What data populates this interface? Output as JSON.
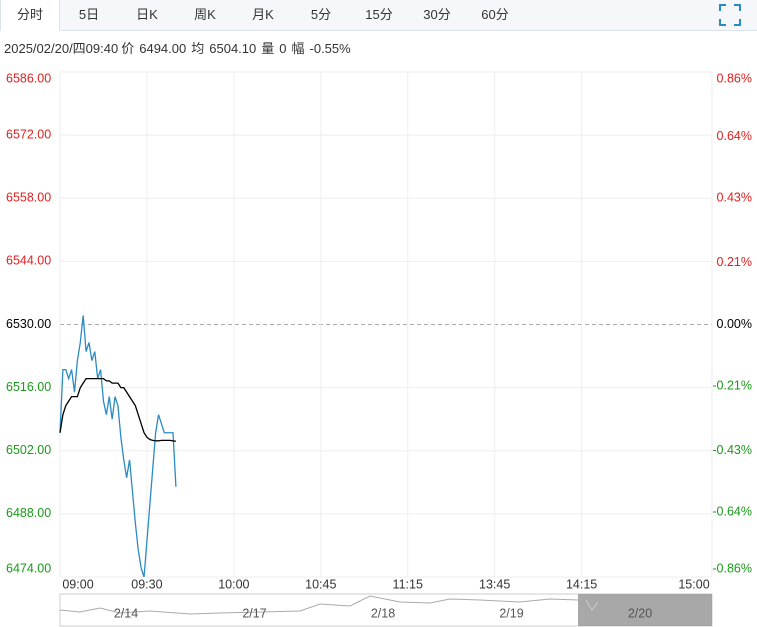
{
  "tabs": [
    "分时",
    "5日",
    "日K",
    "周K",
    "月K",
    "5分",
    "15分",
    "30分",
    "60分"
  ],
  "info": {
    "datetime": "2025/02/20/四09:40",
    "price_label": "价",
    "price": "6494.00",
    "avg_label": "均",
    "avg": "6504.10",
    "volume_label": "量",
    "volume": "0",
    "range_label": "幅",
    "range": "-0.55%"
  },
  "chart_data": {
    "type": "line",
    "xlim": [
      0,
      225
    ],
    "xticks": [
      {
        "value": 0,
        "label": "09:00"
      },
      {
        "value": 30,
        "label": "09:30"
      },
      {
        "value": 60,
        "label": "10:00"
      },
      {
        "value": 90,
        "label": "10:45"
      },
      {
        "value": 120,
        "label": "11:15"
      },
      {
        "value": 150,
        "label": "13:45"
      },
      {
        "value": 180,
        "label": "14:15"
      },
      {
        "value": 225,
        "label": "15:00"
      }
    ],
    "ylim": [
      6474,
      6586
    ],
    "yticks": [
      {
        "value": 6586,
        "label": "6586.00"
      },
      {
        "value": 6572,
        "label": "6572.00"
      },
      {
        "value": 6558,
        "label": "6558.00"
      },
      {
        "value": 6544,
        "label": "6544.00"
      },
      {
        "value": 6530,
        "label": "6530.00"
      },
      {
        "value": 6516,
        "label": "6516.00"
      },
      {
        "value": 6502,
        "label": "6502.00"
      },
      {
        "value": 6488,
        "label": "6488.00"
      },
      {
        "value": 6474,
        "label": "6474.00"
      }
    ],
    "y2lim": [
      -0.86,
      0.86
    ],
    "y2ticks": [
      {
        "value": 0.86,
        "label": "0.86%"
      },
      {
        "value": 0.64,
        "label": "0.64%"
      },
      {
        "value": 0.43,
        "label": "0.43%"
      },
      {
        "value": 0.21,
        "label": "0.21%"
      },
      {
        "value": 0,
        "label": "0.00%"
      },
      {
        "value": -0.21,
        "label": "-0.21%"
      },
      {
        "value": -0.43,
        "label": "-0.43%"
      },
      {
        "value": -0.64,
        "label": "-0.64%"
      },
      {
        "value": -0.86,
        "label": "-0.86%"
      }
    ],
    "reference": 6530,
    "grid": true,
    "x": [
      0,
      1,
      2,
      3,
      4,
      5,
      6,
      7,
      8,
      9,
      10,
      11,
      12,
      13,
      14,
      15,
      16,
      17,
      18,
      19,
      20,
      21,
      22,
      23,
      24,
      25,
      26,
      27,
      28,
      29,
      30,
      31,
      32,
      33,
      34,
      35,
      36,
      37,
      38,
      39,
      40
    ],
    "series": [
      {
        "color": "#2a8bc4",
        "values": [
          6506,
          6520,
          6520,
          6518,
          6520,
          6515,
          6522,
          6526,
          6532,
          6524,
          6526,
          6522,
          6524,
          6518,
          6520,
          6513,
          6510,
          6514,
          6509,
          6514,
          6512,
          6505,
          6500,
          6496,
          6500,
          6493,
          6486,
          6480,
          6476,
          6474,
          6482,
          6490,
          6498,
          6506,
          6510,
          6508,
          6506,
          6506,
          6506,
          6506,
          6494
        ]
      },
      {
        "color": "#000000",
        "values": [
          6506,
          6510,
          6512,
          6513,
          6514,
          6514,
          6514,
          6516,
          6517,
          6518,
          6518,
          6518,
          6518,
          6518,
          6518,
          6518,
          6517.5,
          6517.5,
          6517,
          6517,
          6517,
          6516,
          6516,
          6515,
          6514,
          6513,
          6512,
          6510,
          6508,
          6506,
          6505,
          6504.5,
          6504.3,
          6504.2,
          6504.2,
          6504.3,
          6504.3,
          6504.3,
          6504.3,
          6504.2,
          6504.1
        ]
      }
    ]
  },
  "navigator": {
    "dates": [
      "2/14",
      "2/17",
      "2/18",
      "2/19",
      "2/20"
    ]
  }
}
